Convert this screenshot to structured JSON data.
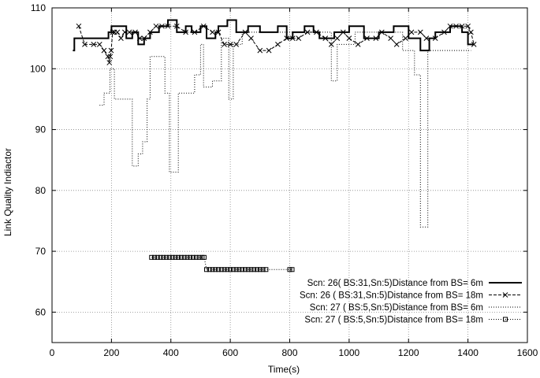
{
  "chart_data": {
    "type": "line",
    "xlabel": "Time(s)",
    "ylabel": "Link Quality Indiactor",
    "xlim": [
      0,
      1600
    ],
    "ylim": [
      55,
      110
    ],
    "xticks": [
      0,
      200,
      400,
      600,
      800,
      1000,
      1200,
      1400,
      1600
    ],
    "yticks": [
      60,
      70,
      80,
      90,
      100,
      110
    ],
    "grid": true,
    "legend_position": "bottom-right",
    "series": [
      {
        "name": "Scn: 26( BS:31,Sn:5)Distance from BS= 6m",
        "style": "solid",
        "x": [
          70,
          75,
          75,
          190,
          190,
          200,
          200,
          250,
          250,
          270,
          270,
          290,
          290,
          310,
          310,
          330,
          330,
          360,
          360,
          390,
          390,
          420,
          420,
          450,
          450,
          470,
          470,
          500,
          500,
          520,
          520,
          550,
          550,
          560,
          560,
          590,
          590,
          620,
          620,
          660,
          660,
          700,
          700,
          760,
          760,
          790,
          790,
          810,
          810,
          850,
          850,
          880,
          880,
          900,
          900,
          950,
          950,
          1000,
          1000,
          1050,
          1050,
          1100,
          1100,
          1150,
          1150,
          1200,
          1200,
          1240,
          1240,
          1270,
          1270,
          1290,
          1290,
          1340,
          1340,
          1380,
          1380,
          1400,
          1400,
          1420
        ],
        "y": [
          103,
          103,
          105,
          105,
          106,
          106,
          107,
          107,
          105,
          105,
          106,
          106,
          104,
          104,
          105,
          105,
          106,
          106,
          107,
          107,
          108,
          108,
          106,
          106,
          107,
          107,
          106,
          106,
          107,
          107,
          105,
          105,
          106,
          106,
          107,
          107,
          108,
          108,
          106,
          106,
          107,
          107,
          106,
          106,
          107,
          107,
          105,
          105,
          106,
          106,
          107,
          107,
          106,
          106,
          105,
          105,
          106,
          106,
          107,
          107,
          105,
          105,
          106,
          106,
          107,
          107,
          105,
          105,
          103,
          103,
          105,
          105,
          106,
          106,
          107,
          107,
          106,
          106,
          104,
          104
        ]
      },
      {
        "name": "Scn: 26 ( BS:31,Sn:5)Distance from BS= 18m",
        "style": "dash-cross",
        "x": [
          90,
          110,
          140,
          160,
          175,
          188,
          193,
          196,
          199,
          204,
          210,
          220,
          232,
          245,
          260,
          280,
          295,
          310,
          330,
          350,
          370,
          390,
          420,
          450,
          480,
          510,
          540,
          560,
          580,
          600,
          620,
          650,
          670,
          700,
          730,
          760,
          790,
          810,
          830,
          860,
          890,
          920,
          940,
          960,
          980,
          1000,
          1030,
          1060,
          1090,
          1110,
          1140,
          1160,
          1190,
          1210,
          1240,
          1260,
          1290,
          1320,
          1340,
          1360,
          1380,
          1400,
          1410,
          1420
        ],
        "y": [
          107,
          104,
          104,
          104,
          103,
          102,
          101,
          102,
          103,
          106,
          106,
          106,
          105,
          106,
          106,
          106,
          105,
          105,
          106,
          107,
          107,
          107,
          107,
          106,
          106,
          107,
          106,
          106,
          104,
          104,
          104,
          106,
          105,
          103,
          103,
          104,
          105,
          105,
          105,
          106,
          106,
          105,
          104,
          105,
          106,
          105,
          104,
          105,
          105,
          106,
          105,
          104,
          105,
          106,
          106,
          105,
          105,
          106,
          107,
          107,
          107,
          107,
          106,
          104
        ]
      },
      {
        "name": "Scn: 27 ( BS:5,Sn:5)Distance from BS= 6m",
        "style": "dotted",
        "x": [
          160,
          175,
          175,
          195,
          195,
          210,
          210,
          270,
          270,
          290,
          290,
          305,
          305,
          320,
          320,
          330,
          330,
          380,
          380,
          395,
          395,
          425,
          425,
          480,
          480,
          500,
          500,
          510,
          510,
          540,
          540,
          570,
          570,
          595,
          595,
          610,
          610,
          640,
          640,
          940,
          940,
          960,
          960,
          1020,
          1020,
          1180,
          1180,
          1220,
          1220,
          1240,
          1240,
          1265,
          1265,
          1300,
          1300,
          1410
        ],
        "y": [
          94,
          94,
          96,
          96,
          100,
          100,
          95,
          95,
          84,
          84,
          86,
          86,
          88,
          88,
          95,
          95,
          102,
          102,
          96,
          96,
          83,
          83,
          96,
          96,
          99,
          99,
          104,
          104,
          97,
          97,
          98,
          98,
          105,
          105,
          95,
          95,
          104,
          104,
          106,
          106,
          98,
          98,
          104,
          104,
          106,
          106,
          103,
          103,
          99,
          99,
          74,
          74,
          103,
          103,
          103,
          103
        ]
      },
      {
        "name": "Scn: 27 ( BS:5,Sn:5)Distance from BS= 18m",
        "style": "dotted-square",
        "x": [
          335,
          345,
          355,
          365,
          375,
          385,
          395,
          405,
          415,
          425,
          435,
          445,
          455,
          465,
          475,
          485,
          495,
          505,
          512,
          520,
          530,
          540,
          550,
          560,
          570,
          580,
          590,
          600,
          610,
          620,
          630,
          640,
          650,
          660,
          670,
          680,
          690,
          700,
          710,
          720,
          800,
          808
        ],
        "y": [
          69,
          69,
          69,
          69,
          69,
          69,
          69,
          69,
          69,
          69,
          69,
          69,
          69,
          69,
          69,
          69,
          69,
          69,
          69,
          67,
          67,
          67,
          67,
          67,
          67,
          67,
          67,
          67,
          67,
          67,
          67,
          67,
          67,
          67,
          67,
          67,
          67,
          67,
          67,
          67,
          67,
          67
        ]
      }
    ]
  }
}
